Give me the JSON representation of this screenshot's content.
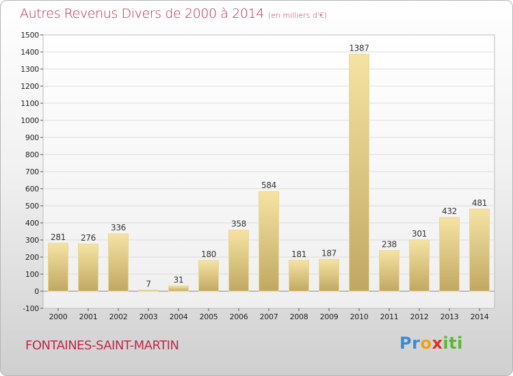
{
  "title": "Autres Revenus Divers de 2000 à 2014",
  "subtitle": "(en milliers d'€)",
  "location": "FONTAINES-SAINT-MARTIN",
  "brand": {
    "letters": [
      "P",
      "r",
      "o",
      "x",
      "i",
      "t",
      "i"
    ],
    "colors": [
      "#3a8ad9",
      "#3a8ad9",
      "#e9a21a",
      "#d8342c",
      "#5ab634",
      "#5ab634",
      "#5ab634"
    ]
  },
  "colors": {
    "title": "#c0284a",
    "bar_light": "#f6e3a3",
    "bar_dark": "#c0a862",
    "grid": "#dcdcdc",
    "axis_text": "#222222"
  },
  "chart_data": {
    "type": "bar",
    "categories": [
      "2000",
      "2001",
      "2002",
      "2003",
      "2004",
      "2005",
      "2006",
      "2007",
      "2008",
      "2009",
      "2010",
      "2011",
      "2012",
      "2013",
      "2014"
    ],
    "values": [
      281,
      276,
      336,
      7,
      31,
      180,
      358,
      584,
      181,
      187,
      1387,
      238,
      301,
      432,
      481
    ],
    "data_labels": [
      "281",
      "276",
      "336",
      "7",
      "31",
      "180",
      "358",
      "584",
      "181",
      "187",
      "1387",
      "238",
      "301",
      "432",
      "481"
    ],
    "ylim": [
      -100,
      1500
    ],
    "yticks": [
      -100,
      0,
      100,
      200,
      300,
      400,
      500,
      600,
      700,
      800,
      900,
      1000,
      1100,
      1200,
      1300,
      1400,
      1500
    ],
    "ytick_labels": [
      "-100",
      "0",
      "100",
      "200",
      "300",
      "400",
      "500",
      "600",
      "700",
      "800",
      "900",
      "1000",
      "1100",
      "1200",
      "1300",
      "1400",
      "1500"
    ],
    "grid": true,
    "legend": "none"
  }
}
